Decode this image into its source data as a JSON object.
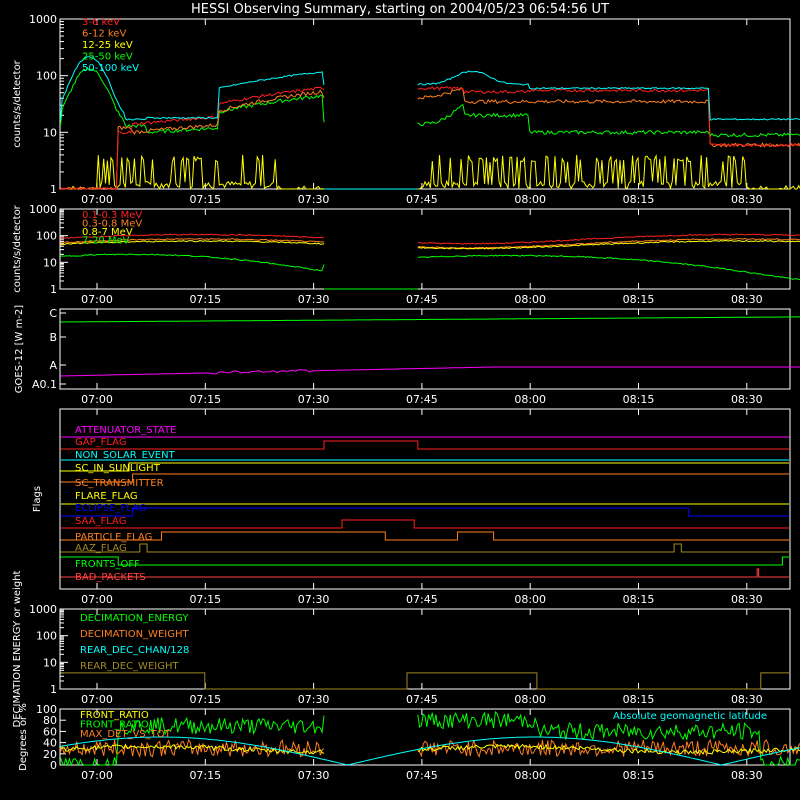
{
  "title": "HESSI Observing Summary, starting on 2004/05/23 06:54:56 UT",
  "time_ticks": [
    "07:00",
    "07:15",
    "07:30",
    "07:45",
    "08:00",
    "08:15",
    "08:30"
  ],
  "colors": {
    "red": "#ff2020",
    "orange": "#ff7f20",
    "yellow": "#ffff00",
    "green": "#00ff00",
    "cyan": "#00ffff",
    "magenta": "#ff00ff",
    "blue": "#0000ff",
    "olive": "#a08a20",
    "lightred": "#ff4040",
    "white": "#ffffff"
  },
  "chart_data": [
    {
      "id": "low-energy",
      "type": "line",
      "ylabel": "counts/s/detector",
      "ylog": true,
      "ylim": [
        1,
        1000
      ],
      "yticks": [
        "1",
        "10",
        "100",
        "1000"
      ],
      "legend": [
        "3-6 keV",
        "6-12 keV",
        "12-25 keV",
        "25-50 keV",
        "50-100 keV"
      ],
      "legend_colors": [
        "red",
        "orange",
        "yellow",
        "green",
        "cyan"
      ],
      "series": [
        {
          "name": "3-6 keV",
          "color": "red",
          "x": [
            7.6,
            7.8,
            8.3,
            8.5,
            9.0,
            9.3,
            9.6,
            10.7,
            10.9,
            11.4,
            11.8,
            12.2,
            13.2,
            13.5,
            14.0,
            14.1,
            15.0,
            16.0,
            17.0,
            18.0,
            20.0,
            21.0,
            22.0,
            25.0,
            26.0,
            28.0,
            30.0,
            32.0,
            34.0,
            35.0,
            36.0,
            36.5
          ],
          "y": [
            1,
            1,
            13,
            13,
            17,
            14,
            13,
            10,
            10,
            11,
            12,
            13,
            15,
            16,
            20,
            20,
            22,
            28,
            32,
            36,
            45,
            50,
            55,
            72,
            78,
            85,
            85,
            80,
            80,
            25,
            20,
            20
          ]
        },
        {
          "name": "6-12 keV",
          "color": "orange",
          "x": [
            7.6,
            7.8,
            8.3,
            8.5,
            9.0,
            9.3,
            9.6,
            10.7,
            10.9,
            11.4,
            11.8,
            12.2,
            13.2,
            13.5,
            14.0,
            14.1,
            15.0,
            16.0,
            17.0,
            18.0,
            20.0,
            21.0,
            22.0,
            25.0,
            26.0,
            28.0,
            30.0,
            32.0,
            34.0,
            35.0,
            36.0,
            36.5
          ],
          "y": [
            1,
            1,
            10,
            10,
            13,
            11,
            10,
            8,
            8,
            9,
            10,
            11,
            12,
            12,
            14,
            14,
            16,
            22,
            25,
            30,
            36,
            38,
            40,
            48,
            50,
            52,
            50,
            45,
            45,
            14,
            12,
            12
          ]
        },
        {
          "name": "12-25 keV",
          "color": "yellow",
          "x": [
            7.6,
            7.8,
            8.3,
            8.5,
            9.0,
            9.3,
            9.6,
            10.7,
            10.9,
            11.4,
            11.8,
            12.2,
            13.2,
            13.5,
            14.0,
            14.1,
            15.0,
            16.0,
            17.0,
            18.0,
            20.0,
            21.0,
            22.0,
            25.0,
            26.0,
            28.0,
            30.0,
            32.0,
            34.0,
            35.0,
            36.0,
            36.5
          ],
          "y": [
            1,
            1,
            2.5,
            2.5,
            2.5,
            2.5,
            2.5,
            2,
            2,
            2,
            2,
            2,
            2,
            2,
            2,
            2,
            2,
            2,
            2,
            2,
            2,
            2,
            2,
            2,
            2,
            2,
            2,
            2,
            2,
            2,
            2,
            2
          ]
        },
        {
          "name": "25-50 keV",
          "color": "green",
          "x": [
            7.6,
            7.8,
            8.3,
            8.5,
            9.0,
            9.3,
            9.6,
            10.7,
            10.9,
            11.4,
            11.8,
            12.2,
            13.2,
            13.5,
            14.0,
            14.1,
            15.0,
            16.0,
            17.0,
            18.0,
            20.0,
            21.0,
            22.0,
            25.0,
            26.0,
            28.0,
            30.0,
            32.0,
            34.0,
            35.0,
            36.0,
            36.5
          ],
          "y": [
            13,
            13,
            25,
            25,
            20,
            18,
            16,
            10,
            10,
            11,
            12,
            12,
            12,
            12,
            13,
            13,
            14,
            16,
            18,
            19,
            21,
            22,
            23,
            25,
            28,
            28,
            25,
            22,
            22,
            9,
            9,
            9
          ]
        },
        {
          "name": "50-100 keV",
          "color": "cyan",
          "x": [
            7.6,
            7.8,
            8.3,
            8.5,
            9.0,
            9.3,
            9.6,
            10.7,
            10.9,
            11.4,
            11.8,
            12.2,
            13.2,
            13.5,
            14.0,
            14.1,
            15.0,
            16.0,
            17.0,
            18.0,
            20.0,
            21.0,
            22.0,
            25.0,
            26.0,
            28.0,
            30.0,
            32.0,
            34.0,
            35.0,
            36.0,
            36.5
          ],
          "y": [
            16,
            16,
            30,
            30,
            24,
            22,
            20,
            14,
            14,
            16,
            18,
            18,
            18,
            18,
            20,
            20,
            22,
            26,
            28,
            30,
            32,
            33,
            34,
            38,
            45,
            45,
            40,
            35,
            35,
            18,
            17,
            17
          ]
        }
      ]
    },
    {
      "id": "high-energy",
      "type": "line",
      "ylabel": "counts/s/detector",
      "ylog": true,
      "ylim": [
        1,
        1000
      ],
      "yticks": [
        "1",
        "10",
        "100",
        "1000"
      ],
      "legend": [
        "0.1-0.3 MeV",
        "0.3-0.8 MeV",
        "0.8-7 MeV",
        "7-20 MeV"
      ],
      "legend_colors": [
        "red",
        "orange",
        "yellow",
        "green"
      ],
      "series": [
        {
          "name": "0.1-0.3 MeV",
          "color": "red",
          "x": [
            6.93,
            7.0,
            7.5,
            8.0,
            8.5,
            8.9,
            9.1,
            9.5,
            10.0,
            10.5,
            11.0,
            11.5,
            12.0,
            12.5,
            13.5
          ],
          "y": [
            60,
            65,
            80,
            90,
            80,
            70,
            75,
            90,
            100,
            90,
            80,
            75,
            70,
            60,
            55
          ]
        },
        {
          "name": "0.3-0.8 MeV",
          "color": "orange",
          "x": [
            6.93,
            7.0,
            7.5,
            8.0,
            8.5,
            8.9,
            9.1,
            9.5,
            10.0,
            10.5,
            11.0,
            11.5,
            12.0,
            12.5,
            13.5
          ],
          "y": [
            55,
            58,
            65,
            70,
            60,
            55,
            60,
            70,
            75,
            70,
            65,
            60,
            58,
            55,
            50
          ]
        },
        {
          "name": "0.8-7 MeV",
          "color": "yellow",
          "x": [
            6.93,
            7.0,
            7.5,
            8.0,
            8.5,
            8.9,
            9.1,
            9.5,
            10.0,
            10.5,
            11.0,
            11.5,
            12.0,
            12.5,
            13.5
          ],
          "y": [
            50,
            52,
            60,
            65,
            55,
            50,
            55,
            65,
            70,
            65,
            60,
            55,
            52,
            50,
            45
          ]
        },
        {
          "name": "7-20 MeV",
          "color": "green",
          "x": [
            6.93,
            7.0,
            7.5,
            8.0,
            8.5,
            8.9,
            9.1,
            9.5,
            10.0,
            10.5,
            11.0,
            11.5,
            12.0,
            12.5,
            13.5
          ],
          "y": [
            13,
            15,
            20,
            22,
            18,
            12,
            14,
            18,
            20,
            17,
            14,
            12,
            10,
            9,
            9
          ]
        }
      ]
    },
    {
      "id": "goes",
      "type": "line",
      "ylabel": "GOES-12 [W m-2]",
      "yticks": [
        "A0.1",
        "A",
        "B",
        "C"
      ],
      "series": [
        {
          "name": "",
          "color": "green",
          "values": []
        },
        {
          "name": "",
          "color": "magenta",
          "values": []
        }
      ]
    },
    {
      "id": "flags",
      "type": "line",
      "ylabel": "Flags",
      "legend": [
        "ATTENUATOR_STATE",
        "GAP_FLAG",
        "NON_SOLAR_EVENT",
        "SC_IN_SUNLIGHT",
        "SC_TRANSMITTER",
        "FLARE_FLAG",
        "ECLIPSE_FLAG",
        "SAA_FLAG",
        "PARTICLE_FLAG",
        "AAZ_FLAG",
        "FRONTS_OFF",
        "BAD_PACKETS"
      ],
      "legend_colors": [
        "magenta",
        "red",
        "cyan",
        "yellow",
        "orange",
        "yellow",
        "blue",
        "red",
        "orange",
        "olive",
        "green",
        "lightred"
      ]
    },
    {
      "id": "decimation",
      "type": "line",
      "ylabel": "DECIMATION ENERGY or weight",
      "ylog": true,
      "ylim": [
        1,
        1000
      ],
      "yticks": [
        "1",
        "10",
        "100",
        "1000"
      ],
      "legend": [
        "DECIMATION_ENERGY",
        "DECIMATION_WEIGHT",
        "REAR_DEC_CHAN/128",
        "REAR_DEC_WEIGHT"
      ],
      "legend_colors": [
        "green",
        "orange",
        "cyan",
        "olive"
      ]
    },
    {
      "id": "ratio",
      "type": "line",
      "ylabel": "Degrees or %",
      "ylim": [
        0,
        100
      ],
      "yticks": [
        "0",
        "20",
        "40",
        "60",
        "80",
        "100"
      ],
      "legend": [
        "FRONT_RATIO",
        "FRONT_RATIO_",
        "MAX_DET_VS_TOT"
      ],
      "legend_colors": [
        "yellow",
        "green",
        "orange"
      ],
      "annotation": "Absolute geomagnetic latitude",
      "annotation_color": "cyan"
    }
  ]
}
